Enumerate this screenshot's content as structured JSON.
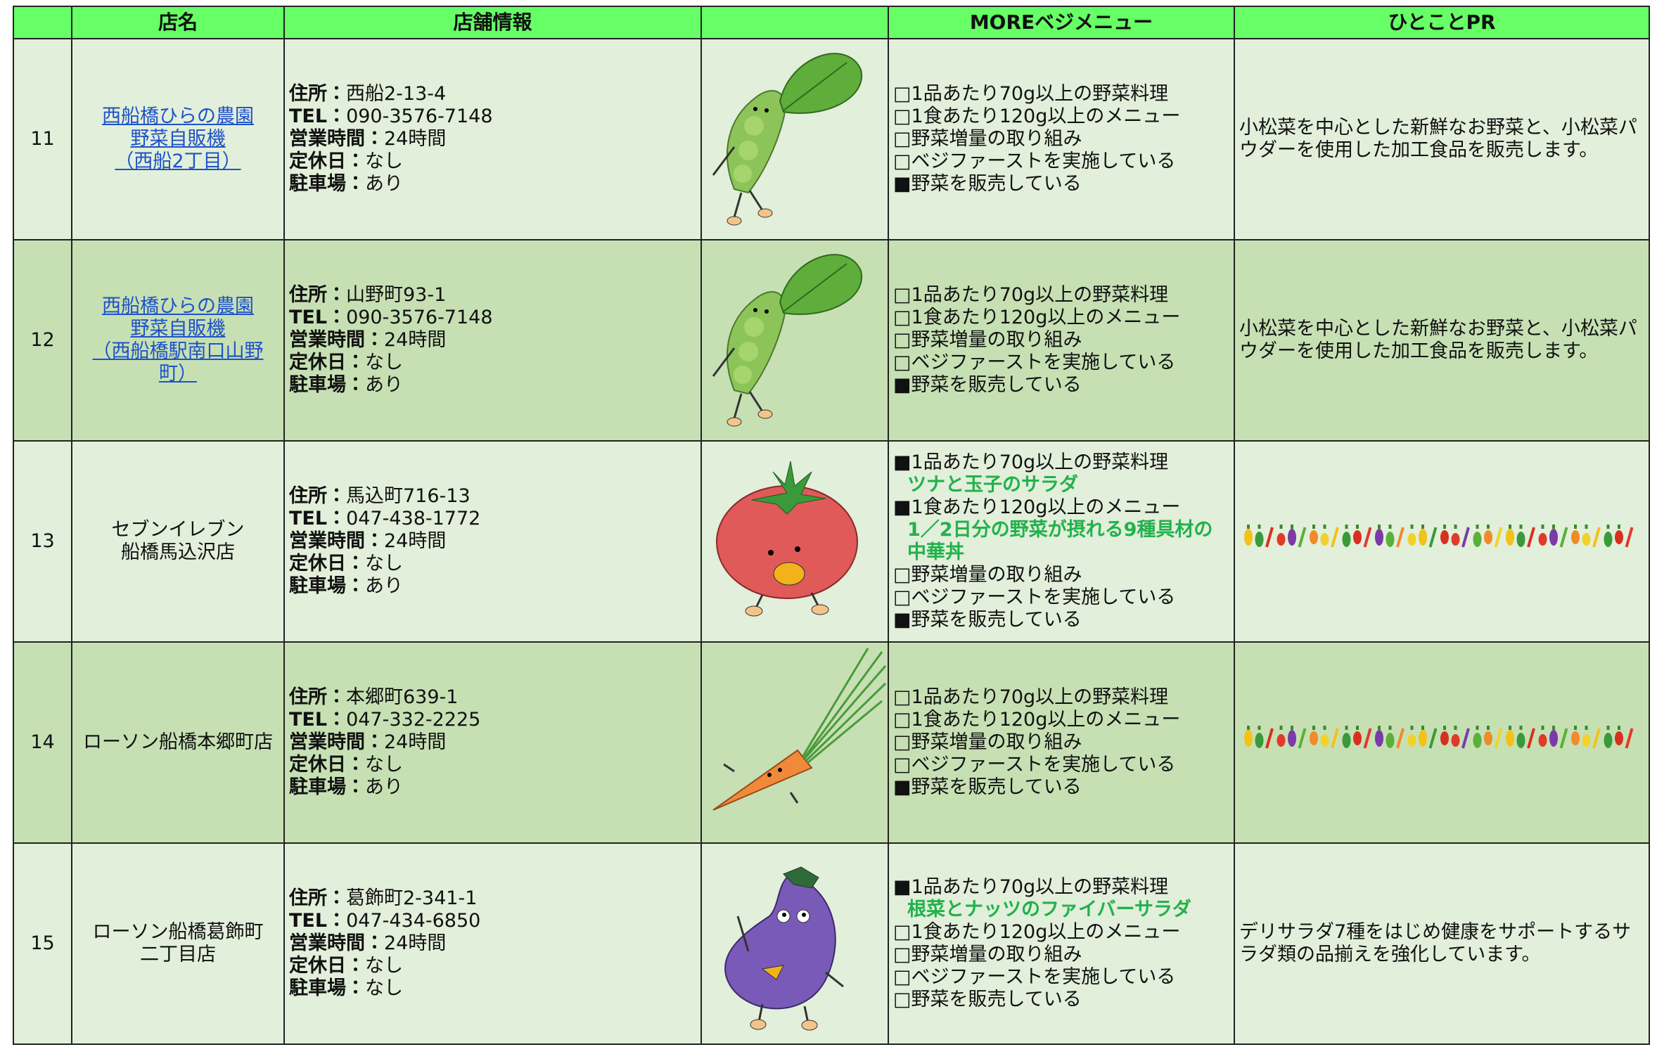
{
  "header": {
    "name": "店名",
    "info": "店舗情報",
    "menu": "MOREベジメニュー",
    "pr": "ひとことPR"
  },
  "rows": [
    {
      "no": 11,
      "link": true,
      "name": [
        "西船橋ひらの農園",
        "野菜自販機",
        "（西船2丁目）"
      ],
      "info": [
        {
          "label": "住所：",
          "value": "西船2-13-4"
        },
        {
          "label": "TEL：",
          "value": "090-3576-7148"
        },
        {
          "label": "営業時間：",
          "value": "24時間"
        },
        {
          "label": "定休日：",
          "value": "なし"
        },
        {
          "label": "駐車場：",
          "value": "あり"
        }
      ],
      "menu": [
        {
          "text": "□1品あたり70g以上の野菜料理"
        },
        {
          "text": "□1食あたり120g以上のメニュー"
        },
        {
          "text": "□野菜増量の取り組み"
        },
        {
          "text": "□ベジファーストを実施している"
        },
        {
          "text": "■野菜を販売している"
        }
      ],
      "pr": "小松菜を中心とした新鮮なお野菜と、小松菜パウダーを使用した加工食品を販売します。"
    },
    {
      "no": 12,
      "link": true,
      "name": [
        "西船橋ひらの農園",
        "野菜自販機",
        "（西船橋駅南口山野",
        "町）"
      ],
      "info": [
        {
          "label": "住所：",
          "value": "山野町93-1"
        },
        {
          "label": "TEL：",
          "value": "090-3576-7148"
        },
        {
          "label": "営業時間：",
          "value": "24時間"
        },
        {
          "label": "定休日：",
          "value": "なし"
        },
        {
          "label": "駐車場：",
          "value": "あり"
        }
      ],
      "menu": [
        {
          "text": "□1品あたり70g以上の野菜料理"
        },
        {
          "text": "□1食あたり120g以上のメニュー"
        },
        {
          "text": "□野菜増量の取り組み"
        },
        {
          "text": "□ベジファーストを実施している"
        },
        {
          "text": "■野菜を販売している"
        }
      ],
      "pr": "小松菜を中心とした新鮮なお野菜と、小松菜パウダーを使用した加工食品を販売します。"
    },
    {
      "no": 13,
      "link": false,
      "name": [
        "セブンイレブン",
        "船橋馬込沢店"
      ],
      "info": [
        {
          "label": "住所：",
          "value": "馬込町716-13"
        },
        {
          "label": "TEL：",
          "value": "047-438-1772"
        },
        {
          "label": "営業時間：",
          "value": "24時間"
        },
        {
          "label": "定休日：",
          "value": "なし"
        },
        {
          "label": "駐車場：",
          "value": "あり"
        }
      ],
      "menu": [
        {
          "text": "■1品あたり70g以上の野菜料理"
        },
        {
          "text": "ツナと玉子のサラダ",
          "highlight": true
        },
        {
          "text": "■1食あたり120g以上のメニュー"
        },
        {
          "text": "1／2日分の野菜が摂れる9種具材の中華丼",
          "highlight": true
        },
        {
          "text": "□野菜増量の取り組み"
        },
        {
          "text": "□ベジファーストを実施している"
        },
        {
          "text": "■野菜を販売している"
        }
      ]
    },
    {
      "no": 14,
      "link": false,
      "name": [
        "ローソン船橋本郷町店"
      ],
      "info": [
        {
          "label": "住所：",
          "value": "本郷町639-1"
        },
        {
          "label": "TEL：",
          "value": "047-332-2225"
        },
        {
          "label": "営業時間：",
          "value": "24時間"
        },
        {
          "label": "定休日：",
          "value": "なし"
        },
        {
          "label": "駐車場：",
          "value": "あり"
        }
      ],
      "menu": [
        {
          "text": "□1品あたり70g以上の野菜料理"
        },
        {
          "text": "□1食あたり120g以上のメニュー"
        },
        {
          "text": "□野菜増量の取り組み"
        },
        {
          "text": "□ベジファーストを実施している"
        },
        {
          "text": "■野菜を販売している"
        }
      ]
    },
    {
      "no": 15,
      "link": false,
      "name": [
        "ローソン船橋葛飾町",
        "二丁目店"
      ],
      "info": [
        {
          "label": "住所：",
          "value": "葛飾町2-341-1"
        },
        {
          "label": "TEL：",
          "value": "047-434-6850"
        },
        {
          "label": "営業時間：",
          "value": "24時間"
        },
        {
          "label": "定休日：",
          "value": "なし"
        },
        {
          "label": "駐車場：",
          "value": "なし"
        }
      ],
      "menu": [
        {
          "text": "■1品あたり70g以上の野菜料理"
        },
        {
          "text": "根菜とナッツのファイバーサラダ",
          "highlight": true
        },
        {
          "text": "□1食あたり120g以上のメニュー"
        },
        {
          "text": "□野菜増量の取り組み"
        },
        {
          "text": "□ベジファーストを実施している"
        },
        {
          "text": "□野菜を販売している"
        }
      ],
      "pr": "デリサラダ7種をはじめ健康をサポートするサラダ類の品揃えを強化しています。"
    }
  ]
}
